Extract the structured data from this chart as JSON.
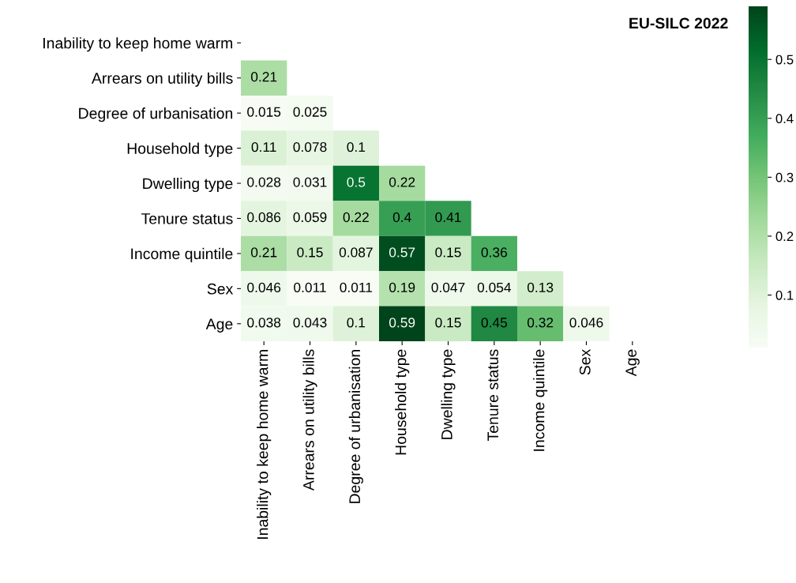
{
  "chart_data": {
    "type": "heatmap",
    "title": "EU-SILC 2022",
    "categories": [
      "Inability to keep home warm",
      "Arrears on utility bills",
      "Degree of urbanisation",
      "Household type",
      "Dwelling type",
      "Tenure status",
      "Income quintile",
      "Sex",
      "Age"
    ],
    "y_categories": [
      "Inability to keep home warm",
      "Arrears on utility bills",
      "Degree of urbanisation",
      "Household type",
      "Dwelling type",
      "Tenure status",
      "Income quintile",
      "Sex",
      "Age"
    ],
    "cells": [
      [
        null,
        null,
        null,
        null,
        null,
        null,
        null,
        null,
        null
      ],
      [
        0.21,
        null,
        null,
        null,
        null,
        null,
        null,
        null,
        null
      ],
      [
        0.015,
        0.025,
        null,
        null,
        null,
        null,
        null,
        null,
        null
      ],
      [
        0.11,
        0.078,
        0.1,
        null,
        null,
        null,
        null,
        null,
        null
      ],
      [
        0.028,
        0.031,
        0.5,
        0.22,
        null,
        null,
        null,
        null,
        null
      ],
      [
        0.086,
        0.059,
        0.22,
        0.4,
        0.41,
        null,
        null,
        null,
        null
      ],
      [
        0.21,
        0.15,
        0.087,
        0.57,
        0.15,
        0.36,
        null,
        null,
        null
      ],
      [
        0.046,
        0.011,
        0.011,
        0.19,
        0.047,
        0.054,
        0.13,
        null,
        null
      ],
      [
        0.038,
        0.043,
        0.1,
        0.59,
        0.15,
        0.45,
        0.32,
        0.046,
        null
      ]
    ],
    "clim": [
      0.011,
      0.59
    ],
    "cticks": [
      0.1,
      0.2,
      0.3,
      0.4,
      0.5
    ],
    "data_labels": true
  }
}
